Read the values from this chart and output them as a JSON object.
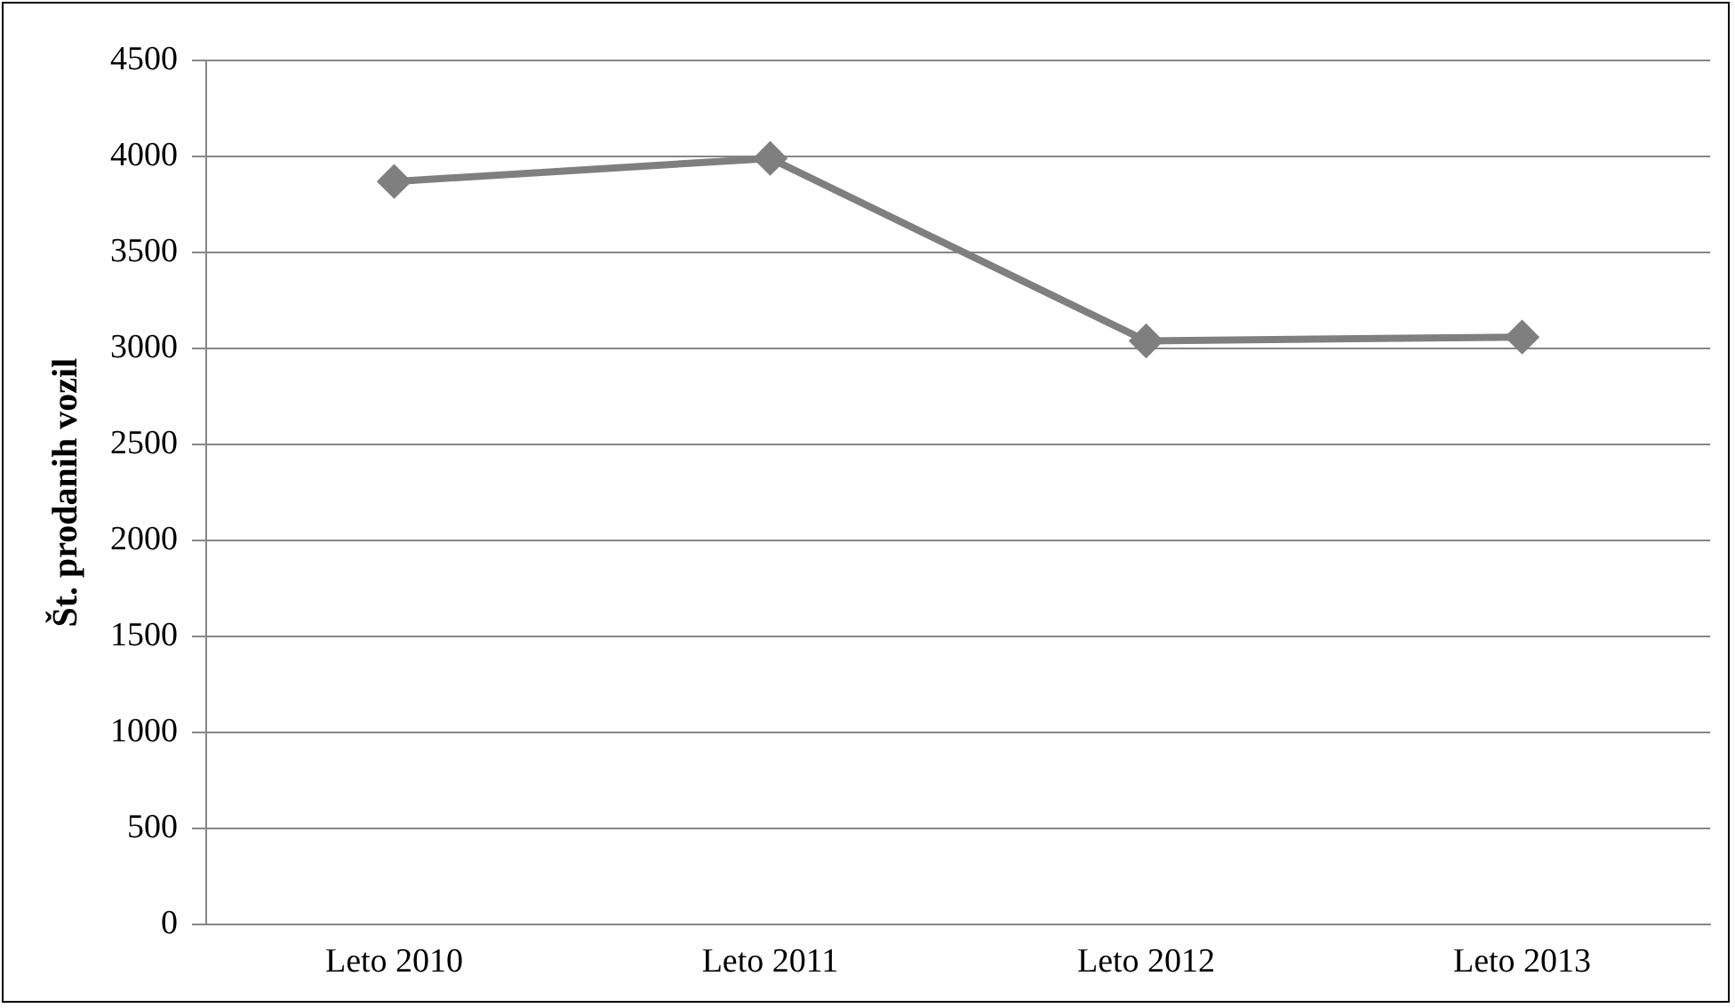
{
  "chart_data": {
    "type": "line",
    "ylabel": "Št. prodanih vozil",
    "categories": [
      "Leto 2010",
      "Leto 2011",
      "Leto 2012",
      "Leto 2013"
    ],
    "series": [
      {
        "color": "#7f7f7f",
        "values": [
          3870,
          3990,
          3040,
          3060
        ]
      }
    ],
    "ylim": [
      0,
      4500
    ],
    "yticks": [
      0,
      500,
      1000,
      1500,
      2000,
      2500,
      3000,
      3500,
      4000,
      4500
    ],
    "grid": "y",
    "legend": false,
    "marker": "diamond",
    "line_style": "solid"
  }
}
